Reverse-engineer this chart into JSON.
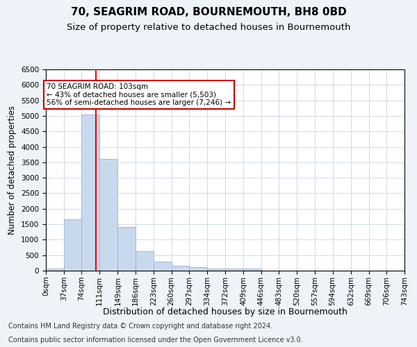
{
  "title": "70, SEAGRIM ROAD, BOURNEMOUTH, BH8 0BD",
  "subtitle": "Size of property relative to detached houses in Bournemouth",
  "xlabel": "Distribution of detached houses by size in Bournemouth",
  "ylabel": "Number of detached properties",
  "footer_line1": "Contains HM Land Registry data © Crown copyright and database right 2024.",
  "footer_line2": "Contains public sector information licensed under the Open Government Licence v3.0.",
  "bar_values": [
    75,
    1650,
    5050,
    3600,
    1420,
    625,
    295,
    150,
    110,
    75,
    60,
    60,
    0,
    0,
    0,
    0,
    0,
    0,
    0,
    0
  ],
  "bin_edges": [
    0,
    37,
    74,
    111,
    149,
    186,
    223,
    260,
    297,
    334,
    372,
    409,
    446,
    483,
    520,
    557,
    594,
    632,
    669,
    706,
    743
  ],
  "tick_labels": [
    "0sqm",
    "37sqm",
    "74sqm",
    "111sqm",
    "149sqm",
    "186sqm",
    "223sqm",
    "260sqm",
    "297sqm",
    "334sqm",
    "372sqm",
    "409sqm",
    "446sqm",
    "483sqm",
    "520sqm",
    "557sqm",
    "594sqm",
    "632sqm",
    "669sqm",
    "706sqm",
    "743sqm"
  ],
  "bar_color": "#c9d9ed",
  "bar_edge_color": "#a0b8d8",
  "red_line_x": 103,
  "ylim": [
    0,
    6500
  ],
  "yticks": [
    0,
    500,
    1000,
    1500,
    2000,
    2500,
    3000,
    3500,
    4000,
    4500,
    5000,
    5500,
    6000,
    6500
  ],
  "annotation_title": "70 SEAGRIM ROAD: 103sqm",
  "annotation_line1": "← 43% of detached houses are smaller (5,503)",
  "annotation_line2": "56% of semi-detached houses are larger (7,246) →",
  "annotation_box_color": "#ffffff",
  "annotation_box_edge": "#cc0000",
  "grid_color": "#c8d4e8",
  "background_color": "#eef2f9",
  "plot_background": "#ffffff",
  "title_fontsize": 11,
  "subtitle_fontsize": 9.5,
  "xlabel_fontsize": 9,
  "ylabel_fontsize": 8.5,
  "tick_fontsize": 7.5,
  "footer_fontsize": 7
}
